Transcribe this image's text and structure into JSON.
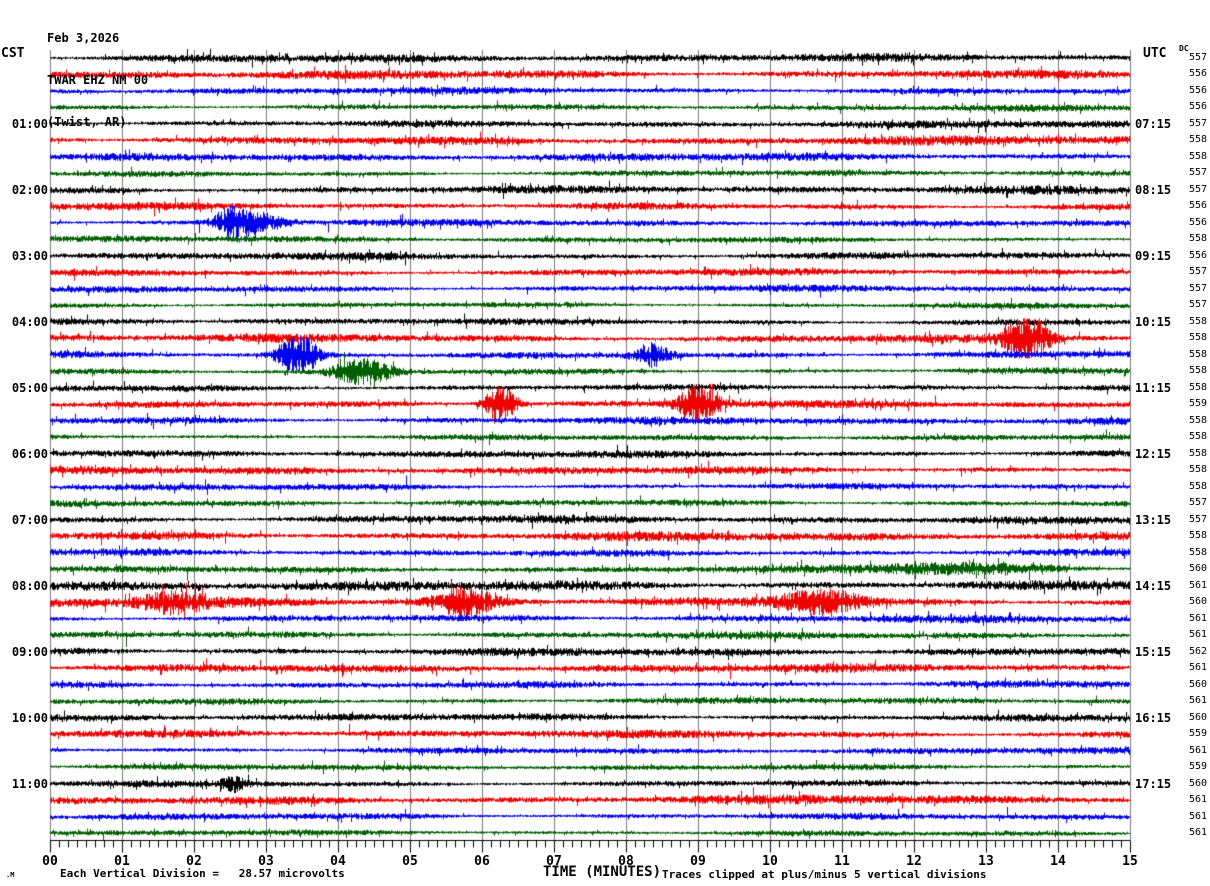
{
  "header": {
    "date": "Feb 3,2026",
    "station": "TWAR EHZ NM 00",
    "location": "(Twist, AR)"
  },
  "chart_data": {
    "type": "line",
    "subtype": "helicorder-seismogram",
    "station": "TWAR",
    "channel": "EHZ",
    "network": "NM",
    "location_code": "00",
    "station_name": "Twist, AR",
    "date": "Feb 3,2026",
    "xlabel": "TIME (MINUTES)",
    "x_ticks": [
      "00",
      "01",
      "02",
      "03",
      "04",
      "05",
      "06",
      "07",
      "08",
      "09",
      "10",
      "11",
      "12",
      "13",
      "14",
      "15"
    ],
    "x_range": [
      0,
      15
    ],
    "minor_ticks_per_minute": 8,
    "minutes_per_row": 15,
    "row_count": 48,
    "trace_color_cycle": [
      "#000000",
      "#f00000",
      "#0000f0",
      "#006000"
    ],
    "grid_color": "#7a7a7a",
    "grid": "vertical lines at every minute",
    "left_axis": {
      "title": "CST",
      "hour_labels": [
        {
          "row": 4,
          "label": "01:00"
        },
        {
          "row": 8,
          "label": "02:00"
        },
        {
          "row": 12,
          "label": "03:00"
        },
        {
          "row": 16,
          "label": "04:00"
        },
        {
          "row": 20,
          "label": "05:00"
        },
        {
          "row": 24,
          "label": "06:00"
        },
        {
          "row": 28,
          "label": "07:00"
        },
        {
          "row": 32,
          "label": "08:00"
        },
        {
          "row": 36,
          "label": "09:00"
        },
        {
          "row": 40,
          "label": "10:00"
        },
        {
          "row": 44,
          "label": "11:00"
        }
      ]
    },
    "right_axis": {
      "title": "UTC",
      "dc_label": "DC",
      "hour_labels": [
        {
          "row": 4,
          "label": "07:15"
        },
        {
          "row": 8,
          "label": "08:15"
        },
        {
          "row": 12,
          "label": "09:15"
        },
        {
          "row": 16,
          "label": "10:15"
        },
        {
          "row": 20,
          "label": "11:15"
        },
        {
          "row": 24,
          "label": "12:15"
        },
        {
          "row": 28,
          "label": "13:15"
        },
        {
          "row": 32,
          "label": "14:15"
        },
        {
          "row": 36,
          "label": "15:15"
        },
        {
          "row": 40,
          "label": "16:15"
        },
        {
          "row": 44,
          "label": "17:15"
        }
      ],
      "dc_values": [
        557,
        556,
        556,
        556,
        557,
        558,
        558,
        557,
        557,
        556,
        556,
        558,
        556,
        557,
        557,
        557,
        558,
        558,
        558,
        558,
        558,
        559,
        558,
        558,
        558,
        558,
        558,
        557,
        557,
        558,
        558,
        560,
        561,
        560,
        561,
        561,
        562,
        561,
        560,
        561,
        560,
        559,
        561,
        559,
        560,
        561,
        561,
        561
      ]
    },
    "scale_note": "Each Vertical Division =   28.57 microvolts",
    "clip_note": "Traces clipped at plus/minus 5 vertical divisions",
    "corner_mark": ".M",
    "events": [
      {
        "row": 10,
        "minute": 2.55,
        "amp": 5.5,
        "width": 0.18
      },
      {
        "row": 10,
        "minute": 2.95,
        "amp": 3.0,
        "width": 0.25
      },
      {
        "row": 17,
        "minute": 13.55,
        "amp": 6.0,
        "width": 0.22
      },
      {
        "row": 18,
        "minute": 3.45,
        "amp": 7.0,
        "width": 0.2
      },
      {
        "row": 18,
        "minute": 8.35,
        "amp": 4.0,
        "width": 0.18
      },
      {
        "row": 19,
        "minute": 4.35,
        "amp": 5.0,
        "width": 0.3
      },
      {
        "row": 21,
        "minute": 6.25,
        "amp": 7.0,
        "width": 0.15
      },
      {
        "row": 21,
        "minute": 9.0,
        "amp": 6.0,
        "width": 0.2
      },
      {
        "row": 31,
        "minute": 12.5,
        "amp": 2.2,
        "width": 1.0
      },
      {
        "row": 33,
        "minute": 1.7,
        "amp": 2.5,
        "width": 0.3
      },
      {
        "row": 33,
        "minute": 5.75,
        "amp": 4.0,
        "width": 0.3
      },
      {
        "row": 33,
        "minute": 10.7,
        "amp": 3.5,
        "width": 0.4
      },
      {
        "row": 44,
        "minute": 2.55,
        "amp": 2.5,
        "width": 0.12
      }
    ]
  }
}
